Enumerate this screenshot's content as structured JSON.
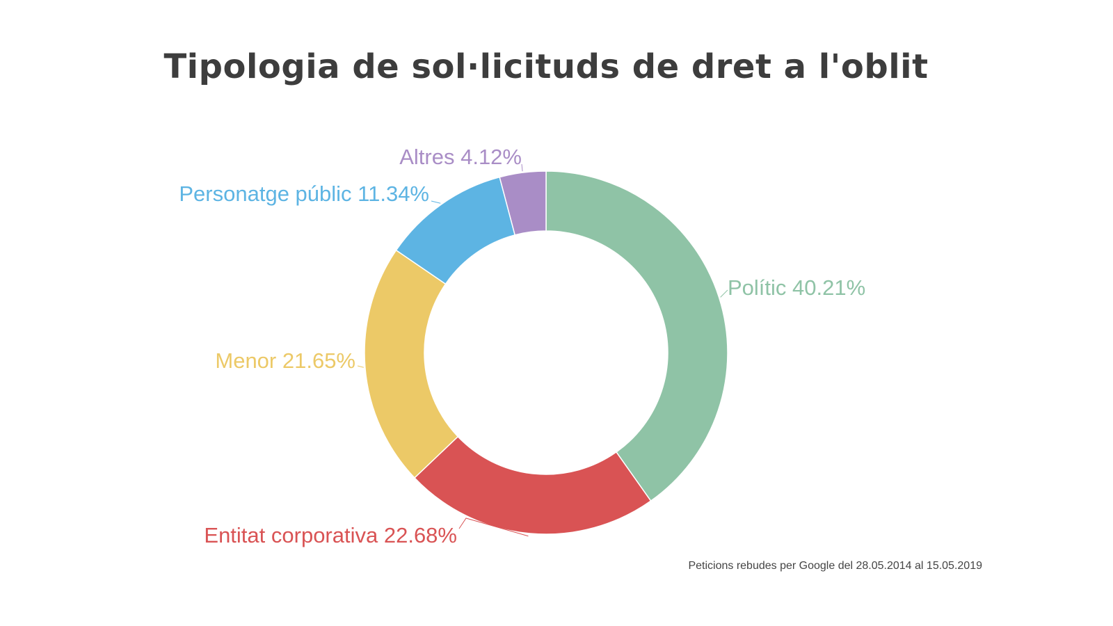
{
  "chart_data": {
    "type": "pie",
    "variant": "donut",
    "title": "Tipologia de sol·licituds de dret a l'oblit",
    "note": "Peticions rebudes per Google del 28.05.2014 al 15.05.2019",
    "start": "top",
    "direction": "clockwise",
    "slices": [
      {
        "label": "Polític",
        "value": 40.21,
        "display": "Polític 40.21%",
        "color": "#8fc3a6"
      },
      {
        "label": "Entitat corporativa",
        "value": 22.68,
        "display": "Entitat corporativa 22.68%",
        "color": "#d95354"
      },
      {
        "label": "Menor",
        "value": 21.65,
        "display": "Menor 21.65%",
        "color": "#ecc967"
      },
      {
        "label": "Personatge públic",
        "value": 11.34,
        "display": "Personatge públic 11.34%",
        "color": "#5db4e3"
      },
      {
        "label": "Altres",
        "value": 4.12,
        "display": "Altres 4.12%",
        "color": "#a98dc6"
      }
    ]
  }
}
